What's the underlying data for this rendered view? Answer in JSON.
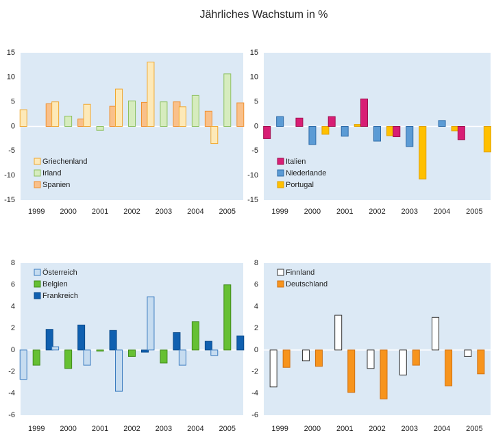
{
  "title": "Jährliches Wachstum in %",
  "chart_data": [
    {
      "type": "bar",
      "categories": [
        "1999",
        "2000",
        "2001",
        "2002",
        "2003",
        "2004",
        "2005"
      ],
      "ylim": [
        -15,
        15
      ],
      "yticks": [
        -15,
        -10,
        -5,
        0,
        5,
        10,
        15
      ],
      "legend": "lower left",
      "background": "#dce9f5",
      "series": [
        {
          "name": "Griechenland",
          "color": "#fde9b8",
          "edgecolor": "#f0a830",
          "values": [
            3.4,
            5.0,
            4.5,
            7.6,
            13.1,
            4.0,
            -3.5
          ]
        },
        {
          "name": "Irland",
          "color": "#d6ecbe",
          "edgecolor": "#8dc060",
          "values": [
            null,
            2.1,
            -0.8,
            5.2,
            5.0,
            6.3,
            10.7
          ]
        },
        {
          "name": "Spanien",
          "color": "#f9c08a",
          "edgecolor": "#f09030",
          "values": [
            4.6,
            1.5,
            4.1,
            4.9,
            5.0,
            3.1,
            4.8
          ]
        }
      ]
    },
    {
      "type": "bar",
      "categories": [
        "1999",
        "2000",
        "2001",
        "2002",
        "2003",
        "2004",
        "2005"
      ],
      "ylim": [
        -15,
        15
      ],
      "yticks": [
        -15,
        -10,
        -5,
        0,
        5,
        10,
        15
      ],
      "legend": "lower left",
      "background": "#dce9f5",
      "series": [
        {
          "name": "Italien",
          "color": "#d81e75",
          "edgecolor": "#a0104f",
          "values": [
            -2.5,
            1.7,
            2.0,
            5.6,
            -2.1,
            null,
            -2.7
          ]
        },
        {
          "name": "Niederlande",
          "color": "#5b9bd5",
          "edgecolor": "#2e6ba8",
          "values": [
            2.0,
            -3.7,
            -2.0,
            -3.0,
            -4.1,
            1.2,
            null
          ]
        },
        {
          "name": "Portugal",
          "color": "#ffc000",
          "edgecolor": "#e0a000",
          "values": [
            null,
            -1.6,
            0.4,
            -1.9,
            -10.7,
            -0.9,
            -5.2
          ]
        }
      ]
    },
    {
      "type": "bar",
      "categories": [
        "1999",
        "2000",
        "2001",
        "2002",
        "2003",
        "2004",
        "2005"
      ],
      "ylim": [
        -6,
        8
      ],
      "yticks": [
        -6,
        -4,
        -2,
        0,
        2,
        4,
        6,
        8
      ],
      "legend": "upper left",
      "background": "#dce9f5",
      "series": [
        {
          "name": "Österreich",
          "color": "#c6dcf0",
          "edgecolor": "#3a7bbf",
          "values": [
            -2.7,
            0.3,
            -1.4,
            -3.8,
            4.9,
            -1.4,
            -0.5
          ]
        },
        {
          "name": "Belgien",
          "color": "#66c033",
          "edgecolor": "#3f8a1a",
          "values": [
            -1.4,
            -1.7,
            -0.1,
            -0.6,
            -1.2,
            2.6,
            6.0
          ]
        },
        {
          "name": "Frankreich",
          "color": "#1060b0",
          "edgecolor": "#0a4a8a",
          "values": [
            1.9,
            2.3,
            1.8,
            -0.2,
            1.6,
            0.8,
            1.3
          ]
        }
      ]
    },
    {
      "type": "bar",
      "categories": [
        "1999",
        "2000",
        "2001",
        "2002",
        "2003",
        "2004",
        "2005"
      ],
      "ylim": [
        -6,
        8
      ],
      "yticks": [
        -6,
        -4,
        -2,
        0,
        2,
        4,
        6,
        8
      ],
      "legend": "upper left",
      "background": "#dce9f5",
      "series": [
        {
          "name": "Finnland",
          "color": "#ffffff",
          "edgecolor": "#333333",
          "values": [
            -3.4,
            -1.0,
            3.2,
            -1.7,
            -2.3,
            3.0,
            -0.6
          ]
        },
        {
          "name": "Deutschland",
          "color": "#f7941d",
          "edgecolor": "#d07010",
          "values": [
            -1.6,
            -1.5,
            -3.9,
            -4.5,
            -1.4,
            -3.3,
            -2.2
          ]
        }
      ]
    }
  ]
}
